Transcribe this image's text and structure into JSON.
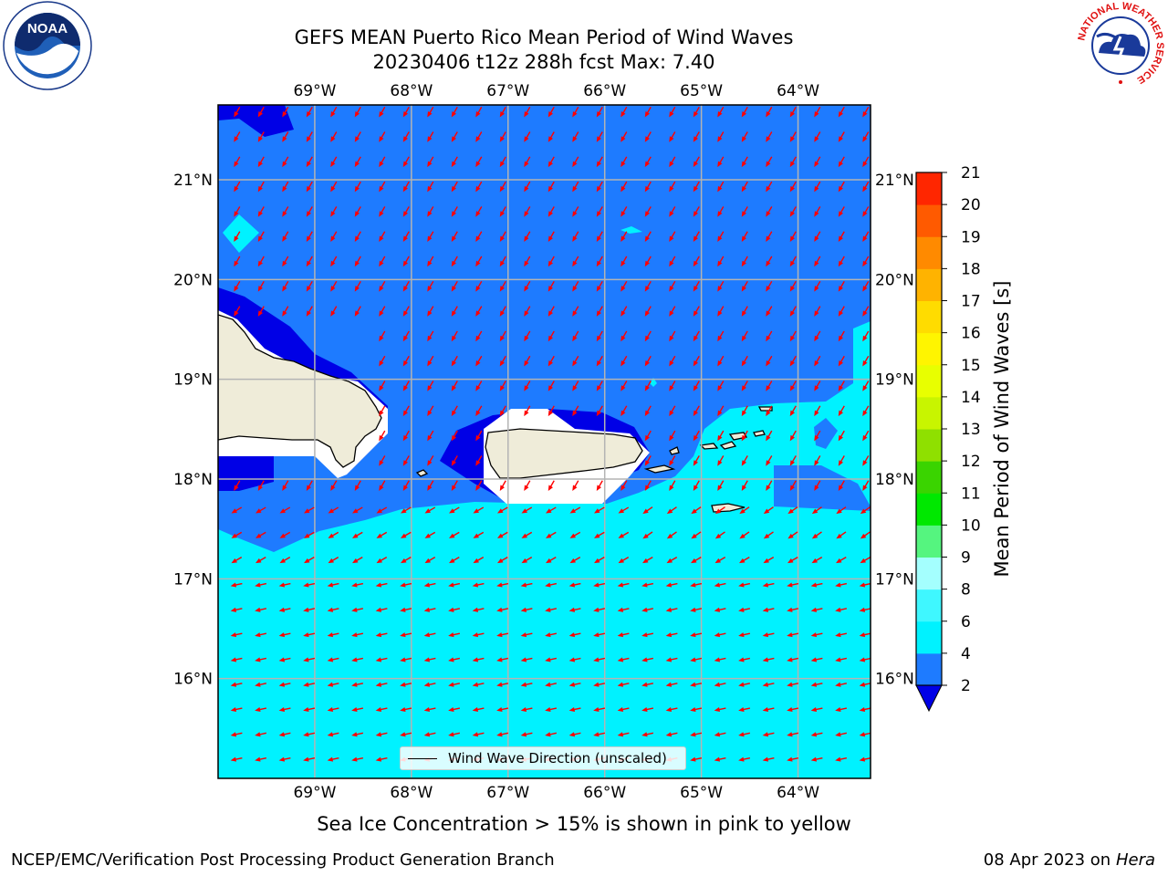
{
  "title": {
    "line1": "GEFS MEAN Puerto Rico Mean Period of Wind Waves",
    "line2": "20230406 t12z 288h fcst   Max: 7.40"
  },
  "map": {
    "lon_ticks": [
      "69°W",
      "68°W",
      "67°W",
      "66°W",
      "65°W",
      "64°W"
    ],
    "lon_values": [
      -69,
      -68,
      -67,
      -66,
      -65,
      -64
    ],
    "lat_ticks": [
      "21°N",
      "20°N",
      "19°N",
      "18°N",
      "17°N",
      "16°N"
    ],
    "lat_values": [
      21,
      20,
      19,
      18,
      17,
      16
    ],
    "extent": {
      "lon": [
        -70,
        -63.25
      ],
      "lat": [
        15,
        21.75
      ]
    },
    "legend_label": "Wind Wave Direction (unscaled)",
    "colors": {
      "land": "#efecd9",
      "band_2_4": "#1e7bff",
      "band_4_6": "#00f2ff",
      "below_2": "#0000e6",
      "arrow": "#ff0000",
      "grid": "#b4b4b4"
    }
  },
  "colorbar": {
    "label": "Mean Period of Wind Waves [s]",
    "ticks": [
      "2",
      "4",
      "6",
      "8",
      "9",
      "10",
      "11",
      "12",
      "13",
      "14",
      "15",
      "16",
      "17",
      "18",
      "19",
      "20",
      "21"
    ],
    "colors": [
      "#1e7bff",
      "#00f2ff",
      "#3ff7ff",
      "#a4fffe",
      "#55f57f",
      "#00e800",
      "#3ad400",
      "#8fe000",
      "#c8f500",
      "#e8ff00",
      "#fff500",
      "#ffdc00",
      "#ffb300",
      "#ff8a00",
      "#ff5a00",
      "#ff2600"
    ],
    "under_color": "#0000e6"
  },
  "notes": {
    "sea_ice": "Sea Ice Concentration > 15% is shown in pink to yellow",
    "footer_left": "NCEP/EMC/Verification Post Processing Product Generation Branch",
    "footer_date": "08 Apr 2023 on ",
    "footer_host": "Hera"
  },
  "logos": {
    "noaa": "NOAA",
    "nws_ring": "NATIONAL WEATHER SERVICE"
  }
}
